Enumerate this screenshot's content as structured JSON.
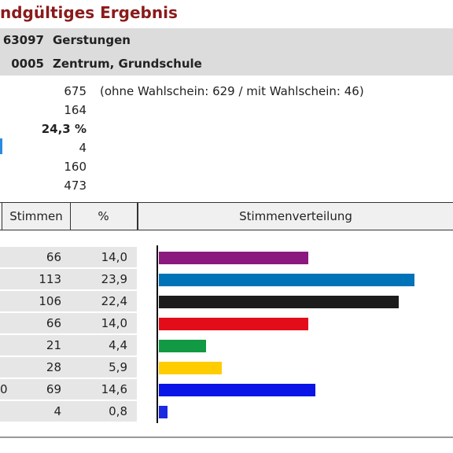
{
  "title": "ndgültiges Ergebnis",
  "location": {
    "municipality_code": "63097",
    "municipality_name": "Gerstungen",
    "district_code": "0005",
    "district_name": "Zentrum, Grundschule"
  },
  "stats": [
    {
      "value": "675",
      "note": "(ohne Wahlschein: 629 / mit Wahlschein: 46)"
    },
    {
      "value": "164",
      "note": ""
    },
    {
      "value": "24,3 %",
      "note": "",
      "bold": true
    },
    {
      "value": "4",
      "note": ""
    },
    {
      "value": "160",
      "note": ""
    },
    {
      "value": "473",
      "note": ""
    }
  ],
  "table": {
    "headers": {
      "votes": "Stimmen",
      "percent": "%",
      "distribution": "Stimmenverteilung"
    },
    "rows": [
      {
        "lead": "",
        "votes": "66",
        "percent": "14,0",
        "share": 14.0,
        "color": "#8b1a7f"
      },
      {
        "lead": "",
        "votes": "113",
        "percent": "23,9",
        "share": 23.9,
        "color": "#0073b8"
      },
      {
        "lead": "",
        "votes": "106",
        "percent": "22,4",
        "share": 22.4,
        "color": "#1c1c1c"
      },
      {
        "lead": "",
        "votes": "66",
        "percent": "14,0",
        "share": 14.0,
        "color": "#e30d1a"
      },
      {
        "lead": "",
        "votes": "21",
        "percent": "4,4",
        "share": 4.4,
        "color": "#119944"
      },
      {
        "lead": "",
        "votes": "28",
        "percent": "5,9",
        "share": 5.9,
        "color": "#ffcc00"
      },
      {
        "lead": "0",
        "votes": "69",
        "percent": "14,6",
        "share": 14.6,
        "color": "#0a14e6"
      },
      {
        "lead": "",
        "votes": "4",
        "percent": "0,8",
        "share": 0.8,
        "color": "#1a2ae0"
      }
    ]
  },
  "colors": {
    "title": "#8b1a1a",
    "band": "#dcdcdc",
    "row_shade": "#e6e6e6"
  }
}
